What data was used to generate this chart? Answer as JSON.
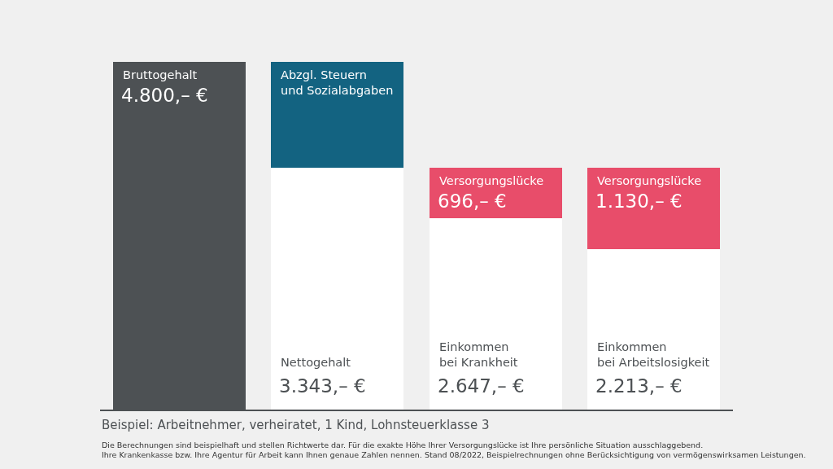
{
  "chart_data": {
    "type": "bar",
    "stacked": true,
    "legend": false,
    "categories": [
      null,
      null,
      null,
      null
    ],
    "series": [
      {
        "name": "Bruttogehalt",
        "color": "#4d5154",
        "values": [
          4800,
          null,
          null,
          null
        ],
        "value_labels": [
          "4.800,– €",
          null,
          null,
          null
        ]
      },
      {
        "name": "Nettogehalt",
        "color": "#ffffff",
        "values": [
          null,
          3343,
          null,
          null
        ],
        "value_labels": [
          null,
          "3.343,– €",
          null,
          null
        ]
      },
      {
        "name": "Einkommen\nbei Krankheit",
        "color": "#ffffff",
        "values": [
          null,
          null,
          2647,
          null
        ],
        "value_labels": [
          null,
          null,
          "2.647,– €",
          null
        ]
      },
      {
        "name": "Einkommen\nbei Arbeitslosigkeit",
        "color": "#ffffff",
        "values": [
          null,
          null,
          null,
          2213
        ],
        "value_labels": [
          null,
          null,
          null,
          "2.213,– €"
        ]
      },
      {
        "name": "Abzgl. Steuern\nund Sozialabgaben",
        "color": "#136381",
        "values": [
          null,
          1457,
          null,
          null
        ]
      },
      {
        "name": "Versorgungslücke",
        "color": "#e84d6a",
        "values": [
          null,
          null,
          696,
          1130
        ],
        "value_labels": [
          null,
          null,
          "696,– €",
          "1.130,– €"
        ]
      }
    ],
    "annotations": [
      "Beispiel: Arbeitnehmer, verheiratet, 1 Kind, Lohnsteuerklasse 3",
      "Die Berechnungen sind beispielhaft und stellen Richtwerte dar. Für die exakte Höhe Ihrer Versorgungslücke ist Ihre persönliche Situation ausschlaggebend.\nIhre Krankenkasse bzw. Ihre Agentur für Arbeit kann Ihnen genaue Zahlen nennen. Stand 08/2022, Beispielrechnungen ohne Berücksichtigung von vermögenswirksamen Leistungen."
    ]
  }
}
